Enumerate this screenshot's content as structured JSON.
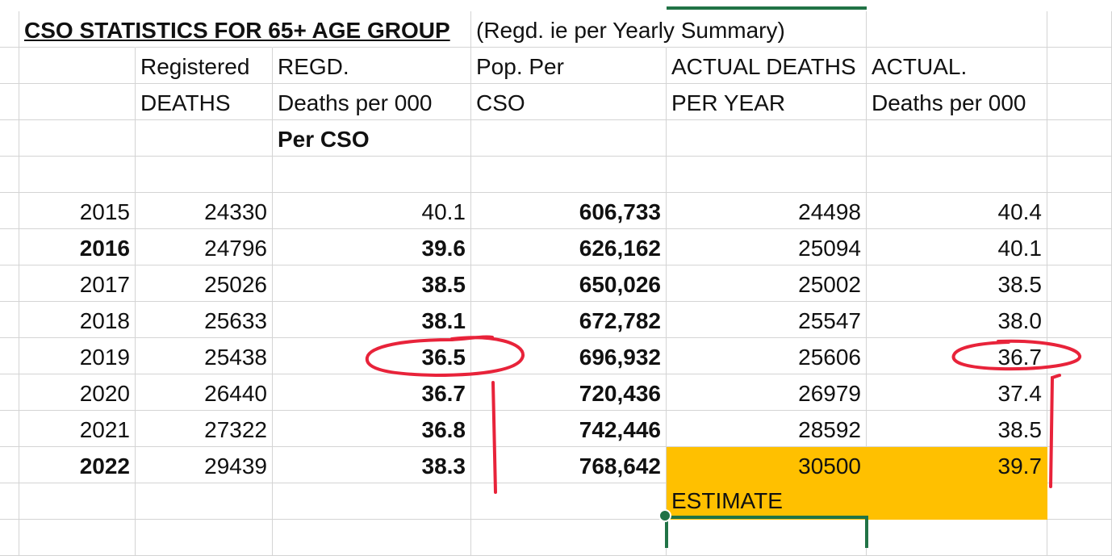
{
  "title": "CSO STATISTICS FOR 65+ AGE GROUP",
  "subtitle": "(Regd. ie per Yearly Summary)",
  "headers": {
    "row1": [
      "Registered",
      "REGD.",
      "Pop. Per",
      "ACTUAL DEATHS",
      "ACTUAL."
    ],
    "row2": [
      "DEATHS",
      "Deaths per 000",
      "CSO",
      "PER YEAR",
      "Deaths per 000"
    ],
    "row3": [
      "",
      "Per CSO",
      "",
      "",
      ""
    ]
  },
  "rows": [
    {
      "year": "2015",
      "registered": "24330",
      "regd_rate": "40.1",
      "pop": "606,733",
      "actual": "24498",
      "actual_rate": "40.4"
    },
    {
      "year": "2016",
      "registered": "24796",
      "regd_rate": "39.6",
      "pop": "626,162",
      "actual": "25094",
      "actual_rate": "40.1"
    },
    {
      "year": "2017",
      "registered": "25026",
      "regd_rate": "38.5",
      "pop": "650,026",
      "actual": "25002",
      "actual_rate": "38.5"
    },
    {
      "year": "2018",
      "registered": "25633",
      "regd_rate": "38.1",
      "pop": "672,782",
      "actual": "25547",
      "actual_rate": "38.0"
    },
    {
      "year": "2019",
      "registered": "25438",
      "regd_rate": "36.5",
      "pop": "696,932",
      "actual": "25606",
      "actual_rate": "36.7"
    },
    {
      "year": "2020",
      "registered": "26440",
      "regd_rate": "36.7",
      "pop": "720,436",
      "actual": "26979",
      "actual_rate": "37.4"
    },
    {
      "year": "2021",
      "registered": "27322",
      "regd_rate": "36.8",
      "pop": "742,446",
      "actual": "28592",
      "actual_rate": "38.5"
    },
    {
      "year": "2022",
      "registered": "29439",
      "regd_rate": "38.3",
      "pop": "768,642",
      "actual": "30500",
      "actual_rate": "39.7"
    }
  ],
  "estimate_label": "ESTIMATE",
  "colors": {
    "highlight": "#ffc000",
    "selection": "#217346",
    "annotation": "#e8233a",
    "gridline": "#d4d4d4"
  }
}
